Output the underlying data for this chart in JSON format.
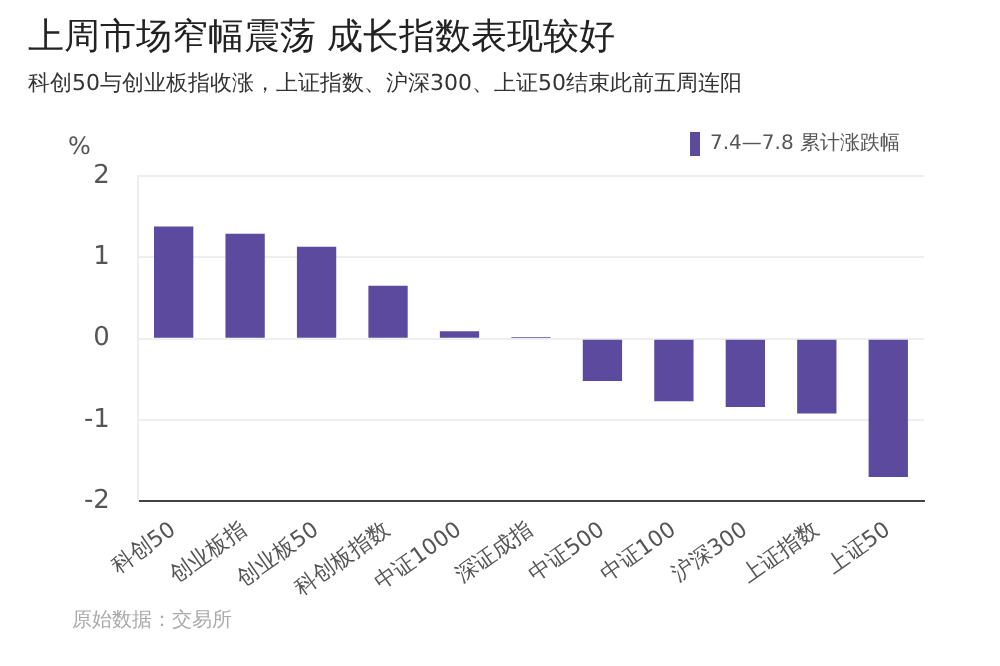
{
  "chart_data": {
    "type": "bar",
    "title": "上周市场窄幅震荡 成长指数表现较好",
    "subtitle": "科创50与创业板指收涨，上证指数、沪深300、上证50结束此前五周连阳",
    "ylabel": "%",
    "categories": [
      "科创50",
      "创业板指",
      "创业板50",
      "科创板指数",
      "中证1000",
      "深证成指",
      "中证500",
      "中证100",
      "沪深300",
      "上证指数",
      "上证50"
    ],
    "series": [
      {
        "name": "7.4—7.8 累计涨跌幅",
        "color": "#5b4a9e",
        "values": [
          1.38,
          1.29,
          1.13,
          0.65,
          0.09,
          0.02,
          -0.52,
          -0.77,
          -0.84,
          -0.92,
          -1.7
        ]
      }
    ],
    "ylim": [
      -2,
      2
    ],
    "yticks": [
      -2,
      -1,
      0,
      1,
      2
    ],
    "grid": "y",
    "legend": "top right",
    "annotations": [
      "原始数据：交易所"
    ]
  }
}
